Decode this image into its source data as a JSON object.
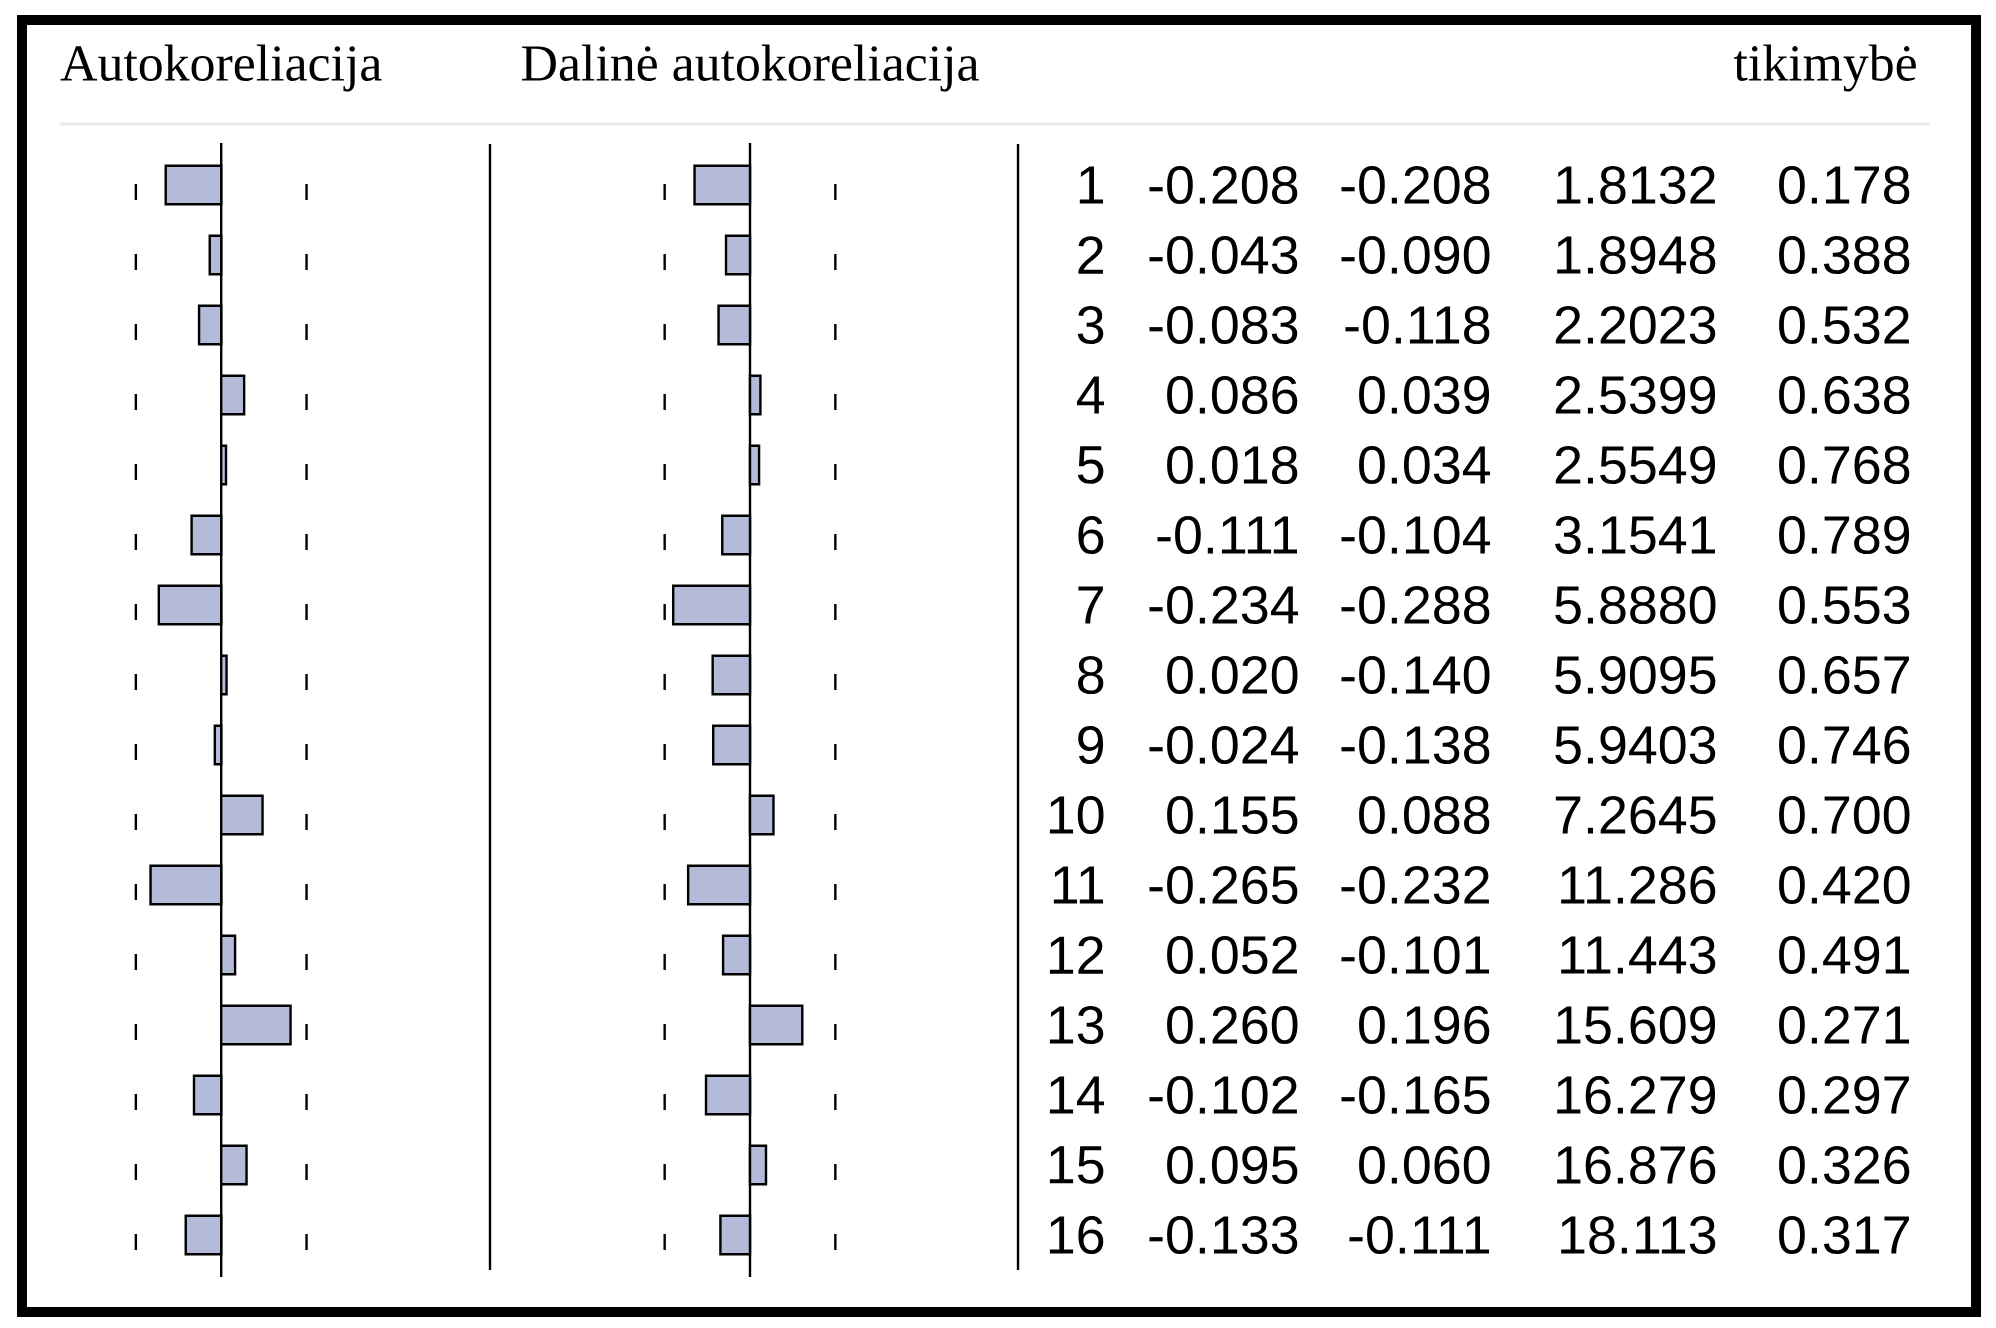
{
  "chart_data": [
    {
      "type": "bar",
      "orientation": "horizontal",
      "title": "Autokoreliacija",
      "categories": [
        "1",
        "2",
        "3",
        "4",
        "5",
        "6",
        "7",
        "8",
        "9",
        "10",
        "11",
        "12",
        "13",
        "14",
        "15",
        "16"
      ],
      "values": [
        -0.208,
        -0.043,
        -0.083,
        0.086,
        0.018,
        -0.111,
        -0.234,
        0.02,
        -0.024,
        0.155,
        -0.265,
        0.052,
        0.26,
        -0.102,
        0.095,
        -0.133
      ],
      "value_labels": [
        "-0.208",
        "-0.043",
        "-0.083",
        "0.086",
        "0.018",
        "-0.111",
        "-0.234",
        "0.020",
        "-0.024",
        "0.155",
        "-0.265",
        "0.052",
        "0.260",
        "-0.102",
        "0.095",
        "-0.133"
      ],
      "color": "#b3bbd9",
      "tick_labels": "y",
      "ref_lines": [
        {
          "axis": "x",
          "value": -0.32,
          "line_style": "dashed",
          "color": "#000000"
        },
        {
          "axis": "x",
          "value": 0.32,
          "line_style": "dashed",
          "color": "#000000"
        }
      ]
    },
    {
      "type": "bar",
      "orientation": "horizontal",
      "title": "Dalinė autokoreliacija",
      "categories": [
        "1",
        "2",
        "3",
        "4",
        "5",
        "6",
        "7",
        "8",
        "9",
        "10",
        "11",
        "12",
        "13",
        "14",
        "15",
        "16"
      ],
      "values": [
        -0.208,
        -0.09,
        -0.118,
        0.039,
        0.034,
        -0.104,
        -0.288,
        -0.14,
        -0.138,
        0.088,
        -0.232,
        -0.101,
        0.196,
        -0.165,
        0.06,
        -0.111
      ],
      "value_labels": [
        "-0.208",
        "-0.090",
        "-0.118",
        "0.039",
        "0.034",
        "-0.104",
        "-0.288",
        "-0.140",
        "-0.138",
        "0.088",
        "-0.232",
        "-0.101",
        "0.196",
        "-0.165",
        "0.060",
        "-0.111"
      ],
      "color": "#b3bbd9",
      "tick_labels": false,
      "ref_lines": [
        {
          "axis": "x",
          "value": -0.32,
          "line_style": "dashed",
          "color": "#000000"
        },
        {
          "axis": "x",
          "value": 0.32,
          "line_style": "dashed",
          "color": "#000000"
        }
      ]
    },
    {
      "type": "other",
      "title": "tikimybė",
      "annotations": [
        "1.8132",
        "0.178",
        "1.8948",
        "0.388",
        "2.2023",
        "0.532",
        "2.5399",
        "0.638",
        "2.5549",
        "0.768",
        "3.1541",
        "0.789",
        "5.8880",
        "0.553",
        "5.9095",
        "0.657",
        "5.9403",
        "0.746",
        "7.2645",
        "0.700",
        "11.286",
        "0.420",
        "11.443",
        "0.491",
        "15.609",
        "0.271",
        "16.279",
        "0.297",
        "16.876",
        "0.326",
        "18.113",
        "0.317"
      ]
    }
  ]
}
